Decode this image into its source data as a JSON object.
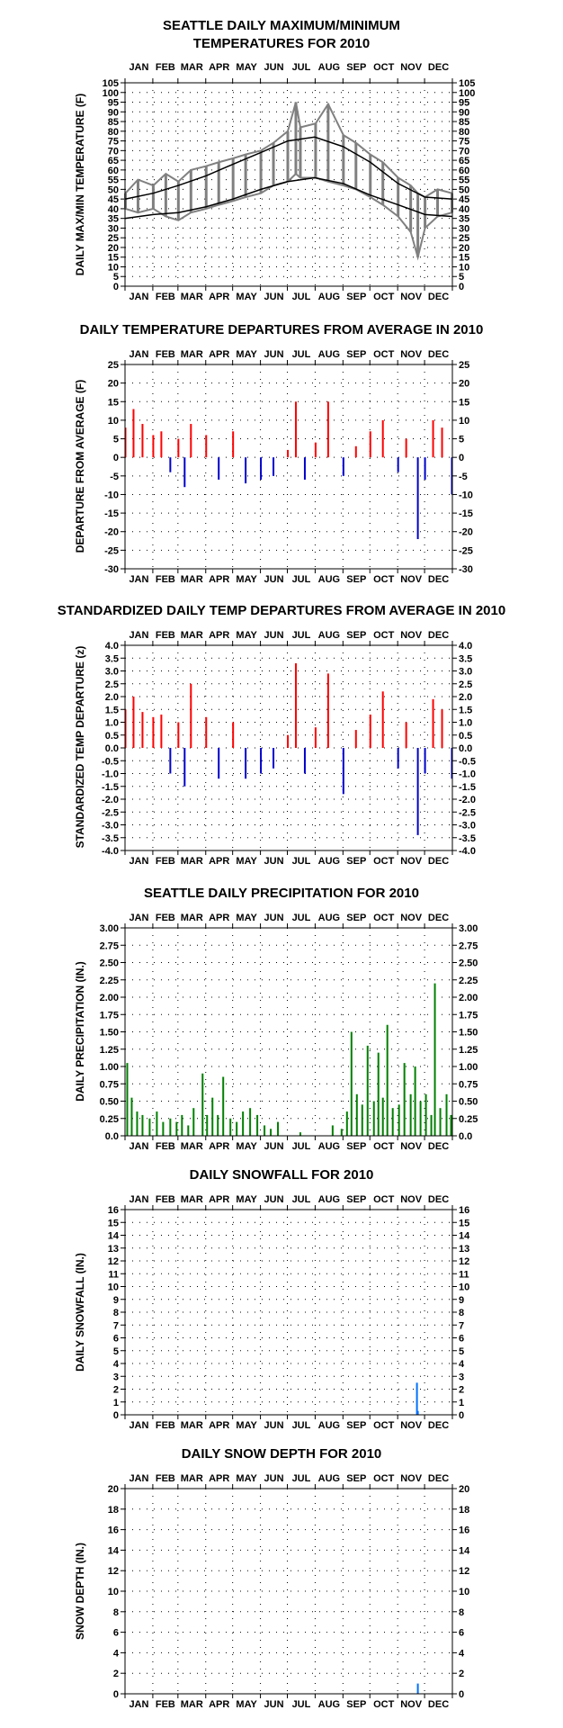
{
  "page": {
    "background": "#ffffff"
  },
  "months": [
    "JAN",
    "FEB",
    "MAR",
    "APR",
    "MAY",
    "JUN",
    "JUL",
    "AUG",
    "SEP",
    "OCT",
    "NOV",
    "DEC"
  ],
  "chart_data": [
    {
      "type": "line",
      "title": [
        "SEATTLE DAILY MAXIMUM/MINIMUM",
        "TEMPERATURES FOR 2010"
      ],
      "ylabel": "DAILY MAX/MIN TEMPERATURE (F)",
      "xlabel": "",
      "ylim": [
        0,
        105
      ],
      "yticks": [
        "0",
        "5",
        "10",
        "15",
        "20",
        "25",
        "30",
        "35",
        "40",
        "45",
        "50",
        "55",
        "60",
        "65",
        "70",
        "75",
        "80",
        "85",
        "90",
        "95",
        "100",
        "105"
      ],
      "grid": true,
      "series": [
        {
          "name": "",
          "kind": "band",
          "color": "#808080",
          "x": [
            "Jan 1",
            "Jan 15",
            "Feb 1",
            "Feb 15",
            "Mar 1",
            "Mar 15",
            "Apr 1",
            "Apr 15",
            "May 1",
            "May 15",
            "Jun 1",
            "Jun 15",
            "Jul 1",
            "Jul 10",
            "Jul 15",
            "Aug 1",
            "Aug 15",
            "Sep 1",
            "Sep 15",
            "Oct 1",
            "Oct 15",
            "Nov 1",
            "Nov 15",
            "Nov 23",
            "Dec 1",
            "Dec 15",
            "Dec 31"
          ],
          "high": [
            48,
            55,
            52,
            58,
            54,
            60,
            62,
            64,
            66,
            68,
            70,
            74,
            80,
            95,
            82,
            84,
            94,
            78,
            74,
            68,
            64,
            56,
            52,
            48,
            46,
            50,
            48
          ],
          "low": [
            40,
            38,
            40,
            36,
            34,
            38,
            40,
            42,
            44,
            46,
            48,
            52,
            54,
            58,
            56,
            56,
            54,
            52,
            50,
            46,
            42,
            36,
            28,
            15,
            30,
            36,
            38
          ]
        },
        {
          "name": "",
          "kind": "line",
          "color": "#000000",
          "x": [
            "Jan 1",
            "Feb 1",
            "Mar 1",
            "Apr 1",
            "May 1",
            "Jun 1",
            "Jul 1",
            "Jul 31",
            "Sep 1",
            "Oct 1",
            "Nov 1",
            "Dec 1",
            "Dec 31"
          ],
          "y": [
            45,
            48,
            52,
            57,
            63,
            69,
            75,
            77,
            72,
            64,
            53,
            46,
            45
          ]
        },
        {
          "name": "",
          "kind": "line",
          "color": "#000000",
          "x": [
            "Jan 1",
            "Feb 1",
            "Mar 1",
            "Apr 1",
            "May 1",
            "Jun 1",
            "Jul 1",
            "Jul 31",
            "Sep 1",
            "Oct 1",
            "Nov 1",
            "Dec 1",
            "Dec 31"
          ],
          "y": [
            35,
            37,
            38,
            41,
            45,
            50,
            54,
            56,
            53,
            47,
            42,
            37,
            36
          ]
        }
      ]
    },
    {
      "type": "bar",
      "title": [
        "DAILY TEMPERATURE DEPARTURES FROM AVERAGE IN 2010"
      ],
      "ylabel": "DEPARTURE FROM AVERAGE (F)",
      "xlabel": "",
      "ylim": [
        -30,
        25
      ],
      "yticks": [
        "-30",
        "-25",
        "-20",
        "-15",
        "-10",
        "-5",
        "0",
        "5",
        "10",
        "15",
        "20",
        "25"
      ],
      "grid": true,
      "positive_color": "#ff0000",
      "negative_color": "#0000cc",
      "x": [
        "Jan 1",
        "Jan 10",
        "Jan 20",
        "Feb 1",
        "Feb 10",
        "Feb 20",
        "Mar 1",
        "Mar 8",
        "Mar 15",
        "Apr 1",
        "Apr 15",
        "May 1",
        "May 15",
        "Jun 1",
        "Jun 15",
        "Jul 1",
        "Jul 10",
        "Jul 20",
        "Aug 1",
        "Aug 15",
        "Sep 1",
        "Sep 15",
        "Oct 1",
        "Oct 15",
        "Nov 1",
        "Nov 10",
        "Nov 23",
        "Dec 1",
        "Dec 10",
        "Dec 20",
        "Dec 31"
      ],
      "values": [
        8,
        13,
        9,
        6,
        7,
        -4,
        5,
        -8,
        9,
        6,
        -6,
        7,
        -7,
        -6,
        -5,
        2,
        15,
        -6,
        4,
        15,
        -5,
        3,
        7,
        10,
        -4,
        5,
        -22,
        -6,
        10,
        8,
        -10
      ]
    },
    {
      "type": "bar",
      "title": [
        "STANDARDIZED DAILY TEMP DEPARTURES FROM AVERAGE IN 2010"
      ],
      "ylabel": "STANDARDIZED TEMP DEPARTURE (z)",
      "xlabel": "",
      "ylim": [
        -4.0,
        4.0
      ],
      "yticks": [
        "-4.0",
        "-3.5",
        "-3.0",
        "-2.5",
        "-2.0",
        "-1.5",
        "-1.0",
        "-0.5",
        "0.0",
        "0.5",
        "1.0",
        "1.5",
        "2.0",
        "2.5",
        "3.0",
        "3.5",
        "4.0"
      ],
      "grid": true,
      "positive_color": "#ff0000",
      "negative_color": "#0000cc",
      "x": [
        "Jan 1",
        "Jan 10",
        "Jan 20",
        "Feb 1",
        "Feb 10",
        "Feb 20",
        "Mar 1",
        "Mar 8",
        "Mar 15",
        "Apr 1",
        "Apr 15",
        "May 1",
        "May 15",
        "Jun 1",
        "Jun 15",
        "Jul 1",
        "Jul 10",
        "Jul 20",
        "Aug 1",
        "Aug 15",
        "Sep 1",
        "Sep 15",
        "Oct 1",
        "Oct 15",
        "Nov 1",
        "Nov 10",
        "Nov 23",
        "Dec 1",
        "Dec 10",
        "Dec 20",
        "Dec 31"
      ],
      "values": [
        1.5,
        2.0,
        1.4,
        1.2,
        1.3,
        -1.0,
        1.0,
        -1.5,
        2.5,
        1.2,
        -1.2,
        1.0,
        -1.2,
        -1.0,
        -0.8,
        0.5,
        3.3,
        -1.0,
        0.8,
        2.9,
        -1.8,
        0.7,
        1.3,
        2.2,
        -0.8,
        1.0,
        -3.4,
        -1.0,
        1.9,
        1.5,
        -1.2
      ]
    },
    {
      "type": "bar",
      "title": [
        "SEATTLE DAILY PRECIPITATION FOR 2010"
      ],
      "ylabel": "DAILY PRECIPITATION (IN.)",
      "xlabel": "",
      "ylim": [
        0,
        3.0
      ],
      "yticks": [
        "0.0",
        "0.25",
        "0.50",
        "0.75",
        "1.00",
        "1.25",
        "1.50",
        "1.75",
        "2.00",
        "2.25",
        "2.50",
        "2.75",
        "3.00"
      ],
      "grid": true,
      "color": "#008000",
      "x": [
        "Jan 3",
        "Jan 8",
        "Jan 14",
        "Jan 20",
        "Jan 28",
        "Feb 5",
        "Feb 12",
        "Feb 20",
        "Feb 27",
        "Mar 5",
        "Mar 12",
        "Mar 18",
        "Mar 28",
        "Apr 2",
        "Apr 8",
        "Apr 14",
        "Apr 20",
        "Apr 28",
        "May 5",
        "May 12",
        "May 20",
        "May 28",
        "Jun 5",
        "Jun 12",
        "Jun 20",
        "Jul 15",
        "Aug 20",
        "Aug 30",
        "Sep 5",
        "Sep 10",
        "Sep 16",
        "Sep 22",
        "Sep 28",
        "Oct 5",
        "Oct 10",
        "Oct 15",
        "Oct 20",
        "Oct 26",
        "Nov 2",
        "Nov 8",
        "Nov 15",
        "Nov 20",
        "Nov 26",
        "Dec 2",
        "Dec 8",
        "Dec 12",
        "Dec 18",
        "Dec 25",
        "Dec 30"
      ],
      "values": [
        1.05,
        0.55,
        0.35,
        0.3,
        0.25,
        0.35,
        0.2,
        0.25,
        0.2,
        0.3,
        0.15,
        0.4,
        0.9,
        0.3,
        0.55,
        0.3,
        0.85,
        0.25,
        0.2,
        0.35,
        0.4,
        0.3,
        0.15,
        0.1,
        0.2,
        0.05,
        0.15,
        0.1,
        0.35,
        1.5,
        0.6,
        0.45,
        1.3,
        0.5,
        1.2,
        0.55,
        1.6,
        0.4,
        0.45,
        1.05,
        0.6,
        1.0,
        0.5,
        0.6,
        0.3,
        2.2,
        0.4,
        0.6,
        0.3
      ]
    },
    {
      "type": "bar",
      "title": [
        "DAILY SNOWFALL FOR 2010"
      ],
      "ylabel": "DAILY SNOWFALL (IN.)",
      "xlabel": "",
      "ylim": [
        0,
        16
      ],
      "yticks": [
        "0",
        "1",
        "2",
        "3",
        "4",
        "5",
        "6",
        "7",
        "8",
        "9",
        "10",
        "11",
        "12",
        "13",
        "14",
        "15",
        "16"
      ],
      "grid": true,
      "color": "#0070ff",
      "x": [
        "Nov 22",
        "Nov 23"
      ],
      "values": [
        2.5,
        0.3
      ]
    },
    {
      "type": "bar",
      "title": [
        "DAILY SNOW DEPTH FOR 2010"
      ],
      "ylabel": "SNOW DEPTH (IN.)",
      "xlabel": "",
      "ylim": [
        0,
        20
      ],
      "yticks": [
        "0",
        "2",
        "4",
        "6",
        "8",
        "10",
        "12",
        "14",
        "16",
        "18",
        "20"
      ],
      "grid": true,
      "color": "#0070ff",
      "x": [
        "Nov 23"
      ],
      "values": [
        1
      ]
    }
  ]
}
